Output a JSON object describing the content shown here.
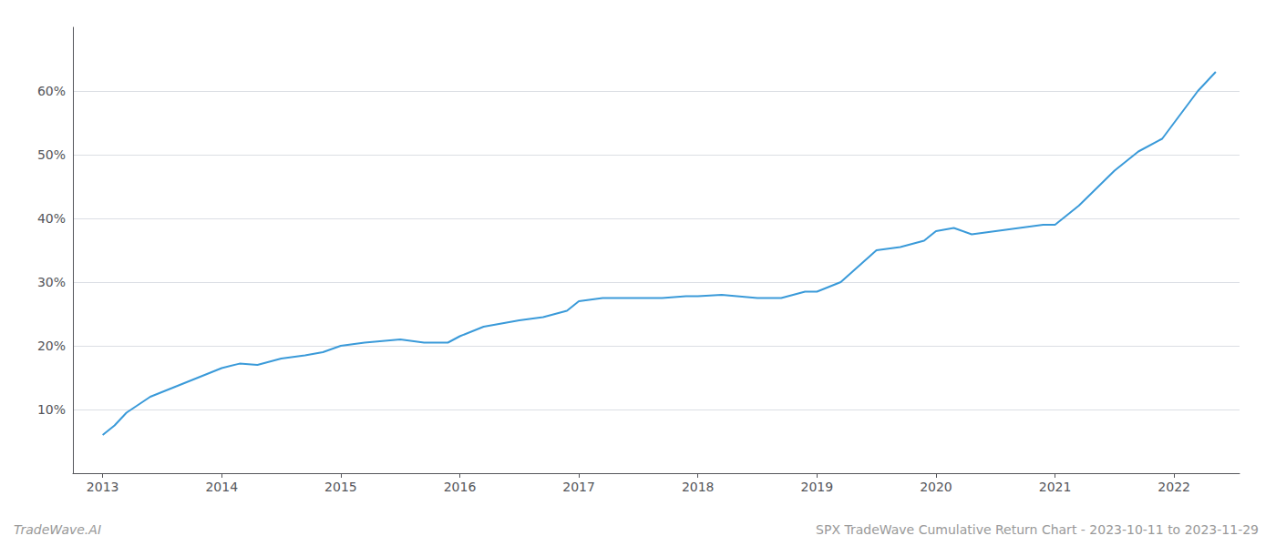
{
  "chart_data": {
    "type": "line",
    "title": "SPX TradeWave Cumulative Return Chart - 2023-10-11 to 2023-11-29",
    "annotations": [
      "TradeWave.AI"
    ],
    "color": "#3a9ad9",
    "grid": true,
    "x": [
      2013.0,
      2013.1,
      2013.2,
      2013.4,
      2013.6,
      2013.8,
      2014.0,
      2014.15,
      2014.3,
      2014.5,
      2014.7,
      2014.85,
      2015.0,
      2015.2,
      2015.5,
      2015.7,
      2015.9,
      2016.0,
      2016.2,
      2016.5,
      2016.7,
      2016.9,
      2017.0,
      2017.2,
      2017.5,
      2017.7,
      2017.9,
      2018.0,
      2018.2,
      2018.5,
      2018.7,
      2018.9,
      2019.0,
      2019.2,
      2019.5,
      2019.7,
      2019.9,
      2020.0,
      2020.15,
      2020.3,
      2020.5,
      2020.7,
      2020.9,
      2021.0,
      2021.2,
      2021.5,
      2021.7,
      2021.9,
      2022.0,
      2022.2,
      2022.35
    ],
    "values": [
      6.0,
      7.5,
      9.5,
      12.0,
      13.5,
      15.0,
      16.5,
      17.2,
      17.0,
      18.0,
      18.5,
      19.0,
      20.0,
      20.5,
      21.0,
      20.5,
      20.5,
      21.5,
      23.0,
      24.0,
      24.5,
      25.5,
      27.0,
      27.5,
      27.5,
      27.5,
      27.8,
      27.8,
      28.0,
      27.5,
      27.5,
      28.5,
      28.5,
      30.0,
      35.0,
      35.5,
      36.5,
      38.0,
      38.5,
      37.5,
      38.0,
      38.5,
      39.0,
      39.0,
      42.0,
      47.5,
      50.5,
      52.5,
      55.0,
      60.0,
      63.0
    ],
    "xlim": [
      2012.75,
      2022.55
    ],
    "xticks": [
      2013,
      2014,
      2015,
      2016,
      2017,
      2018,
      2019,
      2020,
      2021,
      2022
    ],
    "ylim": [
      0,
      70
    ],
    "yticks": [
      {
        "value": 10,
        "label": "10%"
      },
      {
        "value": 20,
        "label": "20%"
      },
      {
        "value": 30,
        "label": "30%"
      },
      {
        "value": 40,
        "label": "40%"
      },
      {
        "value": 50,
        "label": "50%"
      },
      {
        "value": 60,
        "label": "60%"
      }
    ]
  }
}
